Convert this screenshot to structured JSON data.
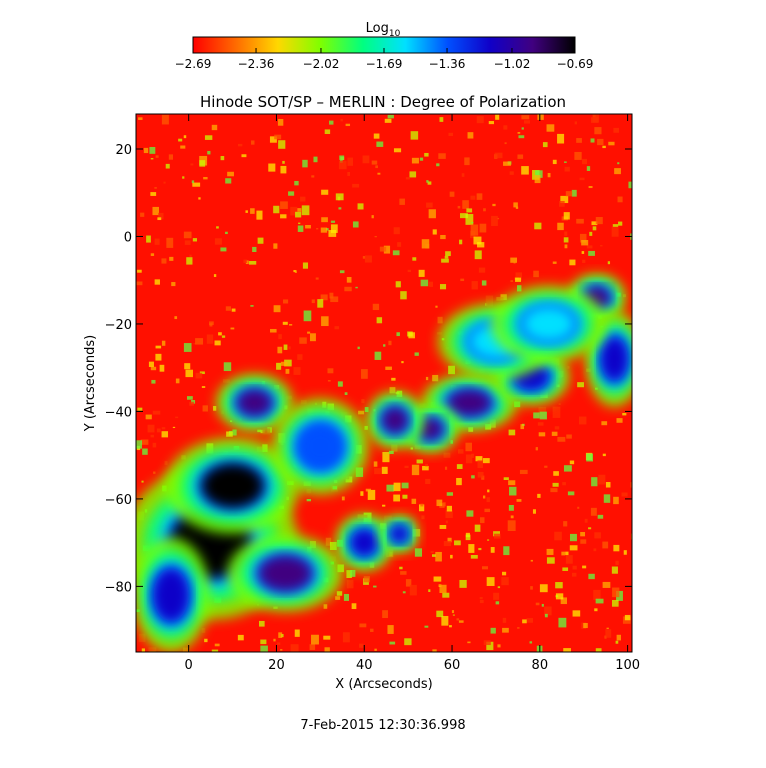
{
  "chart_data": {
    "type": "heatmap",
    "title": "Hinode SOT/SP – MERLIN : Degree of Polarization",
    "xlabel": "X (Arcseconds)",
    "ylabel": "Y (Arcseconds)",
    "xlim": [
      -12,
      101
    ],
    "ylim": [
      -95,
      28
    ],
    "x_ticks": [
      0,
      20,
      40,
      60,
      80,
      100
    ],
    "y_ticks": [
      20,
      0,
      -20,
      -40,
      -60,
      -80
    ],
    "x_tick_labels": [
      "0",
      "20",
      "40",
      "60",
      "80",
      "100"
    ],
    "y_tick_labels": [
      "20",
      "0",
      "−20",
      "−40",
      "−60",
      "−80"
    ],
    "colorbar": {
      "label_prefix": "Log",
      "label_subscript": "10",
      "range": [
        -2.69,
        -0.69
      ],
      "tick_values": [
        -2.69,
        -2.36,
        -2.02,
        -1.69,
        -1.36,
        -1.02,
        -0.69
      ],
      "tick_labels": [
        "−2.69",
        "−2.36",
        "−2.02",
        "−1.69",
        "−1.36",
        "−1.02",
        "−0.69"
      ],
      "colors": [
        "#ff0000",
        "#ff6a00",
        "#ffd800",
        "#7fff00",
        "#00ff80",
        "#00e0ff",
        "#0050ff",
        "#1000c8",
        "#400080",
        "#000000"
      ]
    },
    "high_polarization_regions": [
      {
        "x": 5,
        "y": -70,
        "rx": 9,
        "ry": 8,
        "level": -0.75
      },
      {
        "x": 10,
        "y": -57,
        "rx": 7,
        "ry": 5,
        "level": -0.8
      },
      {
        "x": 22,
        "y": -77,
        "rx": 6,
        "ry": 4,
        "level": -0.85
      },
      {
        "x": 15,
        "y": -38,
        "rx": 4,
        "ry": 3,
        "level": -0.95
      },
      {
        "x": 64,
        "y": -38,
        "rx": 5,
        "ry": 3,
        "level": -0.95
      },
      {
        "x": 55,
        "y": -44,
        "rx": 3,
        "ry": 2.5,
        "level": -1.0
      },
      {
        "x": 47,
        "y": -42,
        "rx": 3,
        "ry": 3,
        "level": -1.0
      },
      {
        "x": 93,
        "y": -14,
        "rx": 3,
        "ry": 2.5,
        "level": -1.0
      },
      {
        "x": 97,
        "y": -28,
        "rx": 3,
        "ry": 5,
        "level": -1.05
      },
      {
        "x": 40,
        "y": -70,
        "rx": 3,
        "ry": 3,
        "level": -1.05
      },
      {
        "x": 48,
        "y": -68,
        "rx": 2,
        "ry": 2,
        "level": -1.1
      },
      {
        "x": 78,
        "y": -32,
        "rx": 4,
        "ry": 3,
        "level": -1.15
      },
      {
        "x": -4,
        "y": -82,
        "rx": 4,
        "ry": 6,
        "level": -1.2
      },
      {
        "x": 30,
        "y": -48,
        "rx": 5,
        "ry": 5,
        "level": -1.35
      },
      {
        "x": 70,
        "y": -24,
        "rx": 6,
        "ry": 4,
        "level": -1.5
      },
      {
        "x": 82,
        "y": -20,
        "rx": 6,
        "ry": 4,
        "level": -1.5
      }
    ]
  },
  "timestamp": "7-Feb-2015 12:30:36.998"
}
